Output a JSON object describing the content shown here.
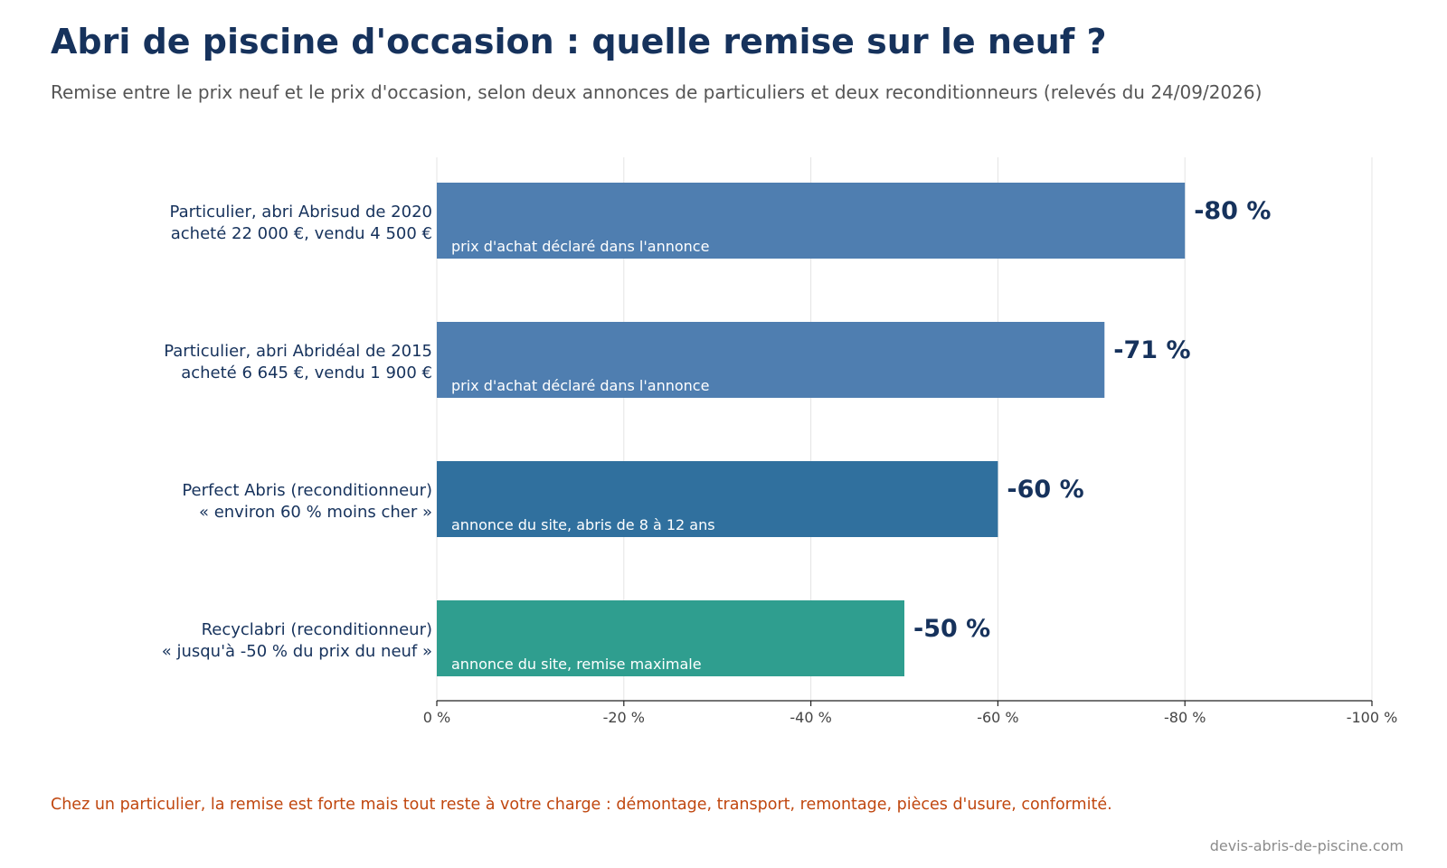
{
  "title": "Abri de piscine d'occasion : quelle remise sur le neuf ?",
  "subtitle": "Remise entre le prix neuf et le prix d'occasion, selon deux annonces de particuliers et deux reconditionneurs (relevés du 24/09/2026)",
  "footnote": "Chez un particulier, la remise est forte mais tout reste à votre charge : démontage, transport, remontage, pièces d'usure, conformité.",
  "source": "devis-abris-de-piscine.com",
  "colors": {
    "title": "#16325c",
    "label": "#16325c",
    "particulier": "#4f7eb0",
    "perfect_abris": "#30709e",
    "recyclabri": "#2f9e8f",
    "footnote": "#c0470f"
  },
  "chart_data": {
    "type": "bar",
    "orientation": "horizontal",
    "unit": "%",
    "xlim": [
      0,
      -100
    ],
    "x_ticks": [
      0,
      -20,
      -40,
      -60,
      -80,
      -100
    ],
    "x_tick_labels": [
      "0 %",
      "-20 %",
      "-40 %",
      "-60 %",
      "-80 %",
      "-100 %"
    ],
    "grid": "vertical",
    "bars": [
      {
        "label_line1": "Particulier, abri Abrisud de 2020",
        "label_line2": "acheté 22 000 €, vendu 4 500 €",
        "value": -80,
        "value_label": "-80 %",
        "note": "prix d'achat déclaré dans l'annonce",
        "color": "#4f7eb0"
      },
      {
        "label_line1": "Particulier, abri Abridéal de 2015",
        "label_line2": "acheté 6 645 €, vendu 1 900 €",
        "value": -71.4,
        "value_label": "-71 %",
        "note": "prix d'achat déclaré dans l'annonce",
        "color": "#4f7eb0"
      },
      {
        "label_line1": "Perfect Abris (reconditionneur)",
        "label_line2": "« environ 60 % moins cher »",
        "value": -60,
        "value_label": "-60 %",
        "note": "annonce du site, abris de 8 à 12 ans",
        "color": "#30709e"
      },
      {
        "label_line1": "Recyclabri (reconditionneur)",
        "label_line2": "« jusqu'à -50 % du prix du neuf »",
        "value": -50,
        "value_label": "-50 %",
        "note": "annonce du site, remise maximale",
        "color": "#2f9e8f"
      }
    ]
  }
}
